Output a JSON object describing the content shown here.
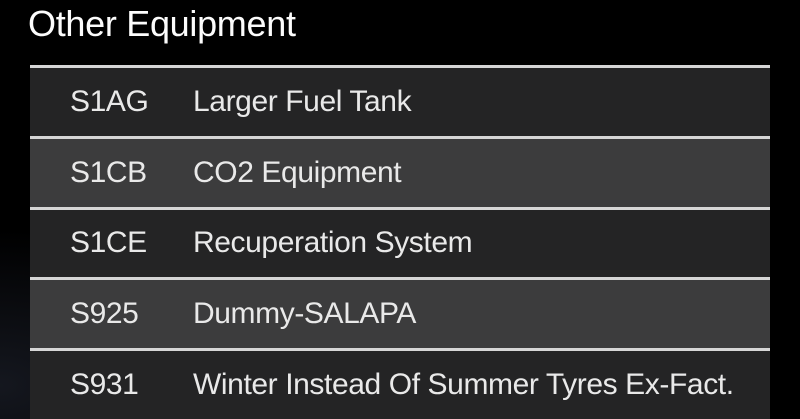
{
  "title": "Other Equipment",
  "colors": {
    "background": "#000000",
    "row_dark": "#242425",
    "row_light": "#3c3c3d",
    "separator": "#d6d6d6",
    "title_text": "#fcfcfc",
    "row_text": "#e9e9e9"
  },
  "equipment_list": {
    "items": [
      {
        "code": "S1AG",
        "description": "Larger Fuel Tank"
      },
      {
        "code": "S1CB",
        "description": "CO2 Equipment"
      },
      {
        "code": "S1CE",
        "description": "Recuperation System"
      },
      {
        "code": "S925",
        "description": "Dummy-SALAPA"
      },
      {
        "code": "S931",
        "description": "Winter Instead Of Summer Tyres Ex-Fact."
      }
    ]
  }
}
